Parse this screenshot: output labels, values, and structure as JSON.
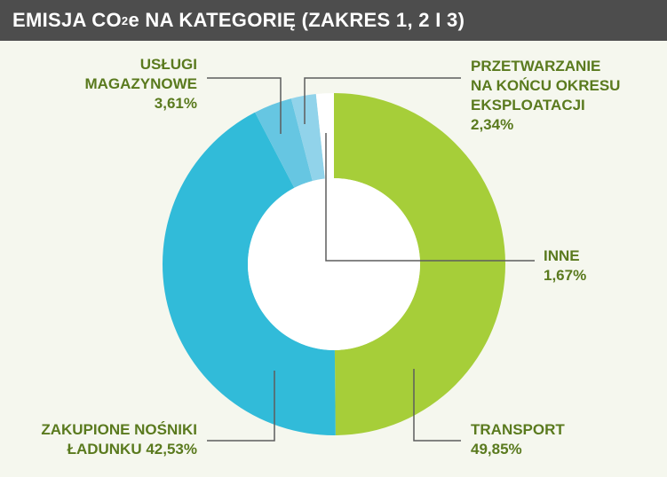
{
  "title": {
    "prefix": "EMISJA CO",
    "subscript": "2",
    "suffix": "e NA KATEGORIĘ (ZAKRES 1, 2 I 3)"
  },
  "chart_data": {
    "type": "pie",
    "subtype": "donut",
    "series": [
      {
        "name": "TRANSPORT",
        "label_lines": [
          "TRANSPORT"
        ],
        "value_text": "49,85%",
        "value": 49.85,
        "color": "#a6ce39"
      },
      {
        "name": "ZAKUPIONE NOŚNIKI ŁADUNKU",
        "label_lines": [
          "ZAKUPIONE NOŚNIKI",
          "ŁADUNKU 42,53%"
        ],
        "value_text": "42,53%",
        "value": 42.53,
        "color": "#31bbd9"
      },
      {
        "name": "USŁUGI MAGAZYNOWE",
        "label_lines": [
          "USŁUGI",
          "MAGAZYNOWE"
        ],
        "value_text": "3,61%",
        "value": 3.61,
        "color": "#66c6e2"
      },
      {
        "name": "PRZETWARZANIE NA KOŃCU OKRESU EKSPLOATACJI",
        "label_lines": [
          "PRZETWARZANIE",
          "NA KOŃCU OKRESU",
          "EKSPLOATACJI"
        ],
        "value_text": "2,34%",
        "value": 2.34,
        "color": "#91d3ea"
      },
      {
        "name": "INNE",
        "label_lines": [
          "INNE"
        ],
        "value_text": "1,67%",
        "value": 1.67,
        "color": "#ffffff"
      }
    ],
    "colors": {
      "label_text": "#5a7a1e",
      "leader_line": "#5d5d5d",
      "title_bar": "#4d4d4d",
      "background": "#f5f7ee"
    }
  }
}
